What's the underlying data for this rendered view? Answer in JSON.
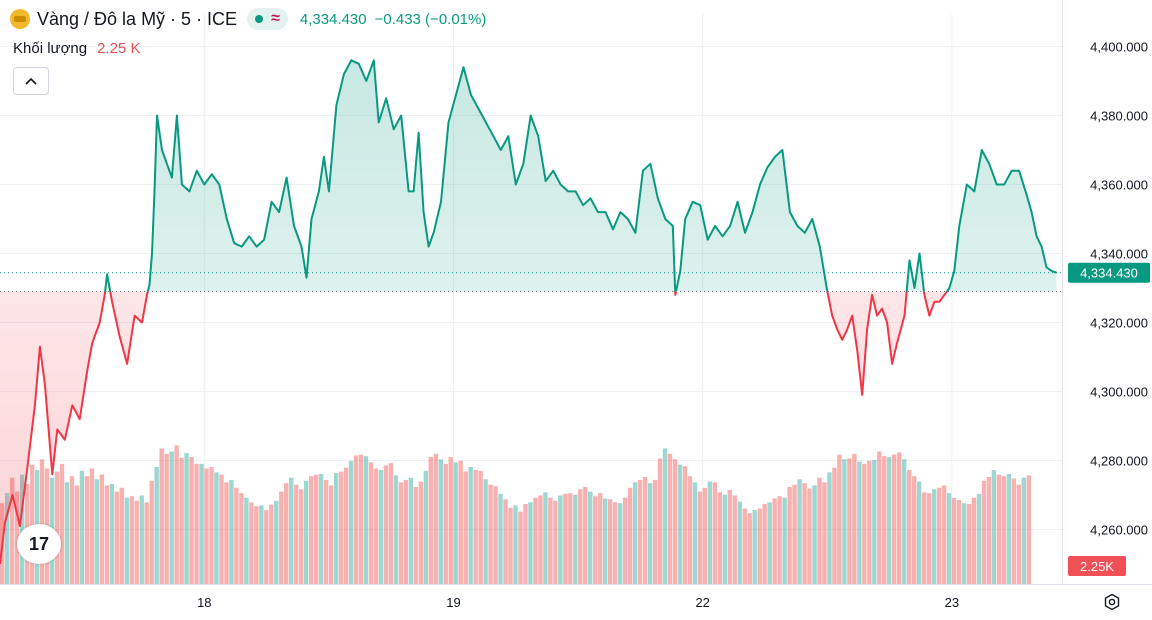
{
  "legend": {
    "symbol": "Vàng / Đô la Mỹ · 5 · ICE",
    "last": "4,334.430",
    "change": "−0.433 (−0.01%)",
    "icon": "gold-coin-icon",
    "status_icon": "market-open-dot-icon",
    "delay_icon": "wave-icon"
  },
  "volume_legend": {
    "label": "Khối lượng",
    "value": "2.25 K"
  },
  "collapse_icon": "chevron-up-icon",
  "logo": {
    "icon": "tradingview-logo-icon",
    "text": "17"
  },
  "settings_icon": "gear-icon",
  "colors": {
    "up": "#089981",
    "down": "#f23645",
    "grid": "#eef0f3",
    "text": "#131722"
  },
  "chart_data": {
    "type": "area",
    "baseline": 4329,
    "last_price": 4334.43,
    "last_price_label": "4,334.430",
    "volume_label": "2.25K",
    "ylim": [
      4245,
      4408
    ],
    "y_ticks": [
      4400,
      4380,
      4360,
      4340,
      4320,
      4300,
      4280,
      4260
    ],
    "y_tick_labels": [
      "4,400.000",
      "4,380.000",
      "4,360.000",
      "4,340.000",
      "4,320.000",
      "4,300.000",
      "4,280.000",
      "4,260.000"
    ],
    "x_ticks": [
      {
        "t": 82,
        "label": "18"
      },
      {
        "t": 182,
        "label": "19"
      },
      {
        "t": 282,
        "label": "22"
      },
      {
        "t": 382,
        "label": "23"
      }
    ],
    "t_range": [
      0,
      425
    ],
    "series": [
      {
        "values": [
          [
            0,
            4250
          ],
          [
            2,
            4262
          ],
          [
            5,
            4270
          ],
          [
            8,
            4261
          ],
          [
            11,
            4278
          ],
          [
            14,
            4296
          ],
          [
            16,
            4313
          ],
          [
            18,
            4302
          ],
          [
            21,
            4276
          ],
          [
            23,
            4289
          ],
          [
            26,
            4286
          ],
          [
            29,
            4296
          ],
          [
            32,
            4292
          ],
          [
            35,
            4306
          ],
          [
            37,
            4314
          ],
          [
            40,
            4320
          ],
          [
            42,
            4328
          ],
          [
            43,
            4334
          ],
          [
            45,
            4326
          ],
          [
            48,
            4316
          ],
          [
            51,
            4308
          ],
          [
            54,
            4322
          ],
          [
            57,
            4320
          ],
          [
            59,
            4328
          ],
          [
            60,
            4331
          ],
          [
            61,
            4340
          ],
          [
            62,
            4358
          ],
          [
            63,
            4380
          ],
          [
            65,
            4370
          ],
          [
            67,
            4366
          ],
          [
            69,
            4362
          ],
          [
            71,
            4380
          ],
          [
            73,
            4360
          ],
          [
            76,
            4358
          ],
          [
            79,
            4364
          ],
          [
            82,
            4360
          ],
          [
            85,
            4363
          ],
          [
            88,
            4360
          ],
          [
            91,
            4350
          ],
          [
            94,
            4343
          ],
          [
            97,
            4342
          ],
          [
            100,
            4345
          ],
          [
            103,
            4342
          ],
          [
            106,
            4344
          ],
          [
            109,
            4355
          ],
          [
            112,
            4352
          ],
          [
            115,
            4362
          ],
          [
            118,
            4348
          ],
          [
            121,
            4342
          ],
          [
            123,
            4333
          ],
          [
            125,
            4350
          ],
          [
            128,
            4358
          ],
          [
            130,
            4368
          ],
          [
            132,
            4358
          ],
          [
            135,
            4383
          ],
          [
            138,
            4392
          ],
          [
            141,
            4396
          ],
          [
            144,
            4395
          ],
          [
            147,
            4390
          ],
          [
            150,
            4396
          ],
          [
            152,
            4378
          ],
          [
            155,
            4385
          ],
          [
            158,
            4376
          ],
          [
            161,
            4380
          ],
          [
            164,
            4358
          ],
          [
            166,
            4358
          ],
          [
            168,
            4375
          ],
          [
            170,
            4352
          ],
          [
            172,
            4342
          ],
          [
            174,
            4346
          ],
          [
            177,
            4355
          ],
          [
            180,
            4378
          ],
          [
            183,
            4386
          ],
          [
            186,
            4394
          ],
          [
            189,
            4386
          ],
          [
            192,
            4382
          ],
          [
            195,
            4378
          ],
          [
            198,
            4374
          ],
          [
            201,
            4370
          ],
          [
            204,
            4374
          ],
          [
            207,
            4360
          ],
          [
            210,
            4366
          ],
          [
            213,
            4380
          ],
          [
            216,
            4374
          ],
          [
            219,
            4361
          ],
          [
            222,
            4364
          ],
          [
            225,
            4360
          ],
          [
            228,
            4358
          ],
          [
            231,
            4358
          ],
          [
            234,
            4354
          ],
          [
            237,
            4356
          ],
          [
            240,
            4352
          ],
          [
            243,
            4352
          ],
          [
            246,
            4347
          ],
          [
            249,
            4352
          ],
          [
            252,
            4350
          ],
          [
            255,
            4346
          ],
          [
            258,
            4364
          ],
          [
            261,
            4366
          ],
          [
            264,
            4356
          ],
          [
            267,
            4350
          ],
          [
            270,
            4348
          ],
          [
            271,
            4328
          ],
          [
            273,
            4335
          ],
          [
            275,
            4350
          ],
          [
            278,
            4355
          ],
          [
            281,
            4354
          ],
          [
            284,
            4344
          ],
          [
            287,
            4348
          ],
          [
            290,
            4345
          ],
          [
            293,
            4348
          ],
          [
            296,
            4355
          ],
          [
            299,
            4346
          ],
          [
            302,
            4352
          ],
          [
            305,
            4360
          ],
          [
            308,
            4365
          ],
          [
            311,
            4368
          ],
          [
            314,
            4370
          ],
          [
            317,
            4352
          ],
          [
            320,
            4348
          ],
          [
            323,
            4346
          ],
          [
            326,
            4350
          ],
          [
            329,
            4342
          ],
          [
            332,
            4329
          ],
          [
            334,
            4322
          ],
          [
            336,
            4318
          ],
          [
            338,
            4315
          ],
          [
            340,
            4318
          ],
          [
            342,
            4322
          ],
          [
            344,
            4312
          ],
          [
            346,
            4299
          ],
          [
            348,
            4318
          ],
          [
            350,
            4328
          ],
          [
            352,
            4322
          ],
          [
            354,
            4324
          ],
          [
            356,
            4320
          ],
          [
            358,
            4308
          ],
          [
            360,
            4314
          ],
          [
            363,
            4322
          ],
          [
            365,
            4338
          ],
          [
            367,
            4330
          ],
          [
            369,
            4340
          ],
          [
            371,
            4328
          ],
          [
            373,
            4322
          ],
          [
            375,
            4326
          ],
          [
            377,
            4326
          ],
          [
            379,
            4328
          ],
          [
            381,
            4330
          ],
          [
            383,
            4335
          ],
          [
            385,
            4348
          ],
          [
            388,
            4360
          ],
          [
            391,
            4358
          ],
          [
            394,
            4370
          ],
          [
            397,
            4366
          ],
          [
            400,
            4360
          ],
          [
            403,
            4360
          ],
          [
            406,
            4364
          ],
          [
            409,
            4364
          ],
          [
            412,
            4357
          ],
          [
            414,
            4352
          ],
          [
            416,
            4345
          ],
          [
            418,
            4342
          ],
          [
            420,
            4336
          ],
          [
            422,
            4335
          ],
          [
            424,
            4334.43
          ]
        ]
      }
    ],
    "volume": {
      "ylim": [
        0,
        2000
      ],
      "t_step": 2,
      "values": [
        1050,
        1180,
        1380,
        1200,
        1420,
        1300,
        1550,
        1480,
        1620,
        1500,
        1380,
        1460,
        1560,
        1320,
        1400,
        1280,
        1470,
        1400,
        1500,
        1360,
        1420,
        1280,
        1300,
        1200,
        1250,
        1120,
        1140,
        1080,
        1150,
        1060,
        1340,
        1520,
        1760,
        1690,
        1720,
        1800,
        1640,
        1700,
        1650,
        1560,
        1560,
        1500,
        1520,
        1450,
        1420,
        1320,
        1350,
        1250,
        1180,
        1120,
        1060,
        1010,
        1020,
        960,
        1030,
        1080,
        1200,
        1310,
        1380,
        1290,
        1230,
        1340,
        1400,
        1420,
        1430,
        1350,
        1280,
        1440,
        1460,
        1510,
        1600,
        1670,
        1680,
        1660,
        1580,
        1500,
        1480,
        1540,
        1570,
        1410,
        1320,
        1350,
        1380,
        1260,
        1330,
        1470,
        1650,
        1690,
        1620,
        1560,
        1650,
        1580,
        1600,
        1460,
        1520,
        1480,
        1470,
        1360,
        1290,
        1270,
        1170,
        1100,
        990,
        1020,
        940,
        1040,
        1060,
        1120,
        1150,
        1190,
        1120,
        1080,
        1150,
        1170,
        1180,
        1160,
        1230,
        1260,
        1200,
        1140,
        1180,
        1110,
        1100,
        1060,
        1050,
        1120,
        1250,
        1320,
        1350,
        1390,
        1310,
        1350,
        1630,
        1760,
        1690,
        1620,
        1550,
        1530,
        1400,
        1320,
        1200,
        1250,
        1330,
        1320,
        1190,
        1160,
        1220,
        1150,
        1070,
        980,
        920,
        960,
        980,
        1040,
        1060,
        1110,
        1140,
        1120,
        1260,
        1290,
        1360,
        1310,
        1240,
        1280,
        1380,
        1320,
        1450,
        1510,
        1680,
        1620,
        1630,
        1690,
        1590,
        1560,
        1600,
        1610,
        1720,
        1660,
        1650,
        1680,
        1710,
        1620,
        1480,
        1400,
        1330,
        1190,
        1180,
        1230,
        1250,
        1280,
        1180,
        1120,
        1090,
        1050,
        1040,
        1120,
        1170,
        1340,
        1390,
        1480,
        1420,
        1400,
        1430,
        1370,
        1290,
        1380,
        1410
      ]
    }
  }
}
